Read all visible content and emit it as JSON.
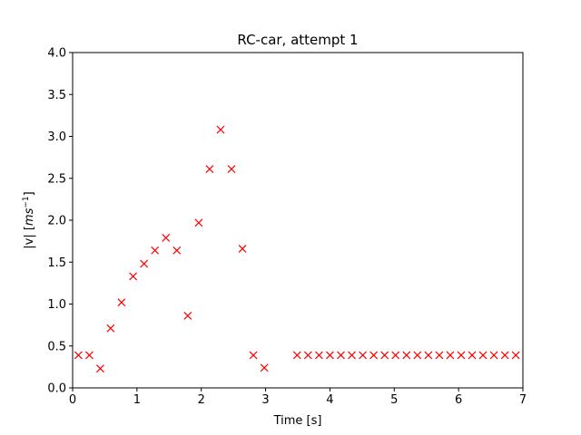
{
  "chart_data": {
    "type": "scatter",
    "title": "RC-car, attempt 1",
    "xlabel": "Time [s]",
    "ylabel": "|v| [ms⁻¹]",
    "xlim": [
      0,
      7
    ],
    "ylim": [
      0,
      4.0
    ],
    "xticks": [
      "0",
      "1",
      "2",
      "3",
      "4",
      "5",
      "6",
      "7"
    ],
    "yticks": [
      "0.0",
      "0.5",
      "1.0",
      "1.5",
      "2.0",
      "2.5",
      "3.0",
      "3.5",
      "4.0"
    ],
    "grid": false,
    "marker": "x",
    "color": "#ff0000",
    "series": [
      {
        "x": [
          0.09,
          0.26,
          0.43,
          0.59,
          0.76,
          0.94,
          1.11,
          1.28,
          1.45,
          1.62,
          1.79,
          1.96,
          2.13,
          2.3,
          2.47,
          2.64,
          2.81,
          2.98,
          3.49,
          3.66,
          3.83,
          4.0,
          4.17,
          4.34,
          4.51,
          4.68,
          4.85,
          5.02,
          5.19,
          5.36,
          5.53,
          5.7,
          5.87,
          6.04,
          6.21,
          6.38,
          6.55,
          6.72,
          6.89
        ],
        "y": [
          0.39,
          0.39,
          0.23,
          0.71,
          1.02,
          1.33,
          1.48,
          1.64,
          1.79,
          1.64,
          0.86,
          1.97,
          2.61,
          3.08,
          2.61,
          1.66,
          0.39,
          0.24,
          0.39,
          0.39,
          0.39,
          0.39,
          0.39,
          0.39,
          0.39,
          0.39,
          0.39,
          0.39,
          0.39,
          0.39,
          0.39,
          0.39,
          0.39,
          0.39,
          0.39,
          0.39,
          0.39,
          0.39,
          0.39
        ]
      }
    ]
  }
}
